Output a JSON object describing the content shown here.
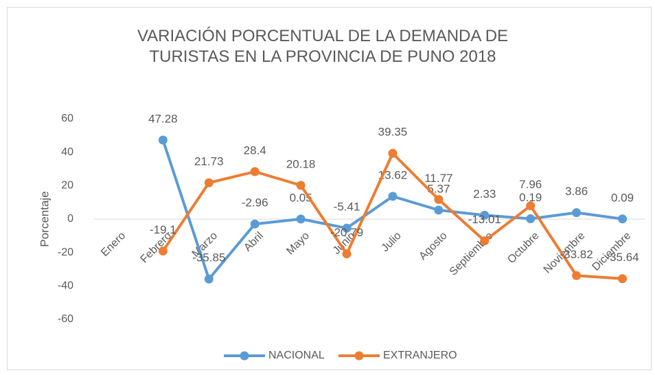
{
  "chart_data": {
    "type": "line",
    "title": "VARIACIÓN PORCENTUAL DE LA DEMANDA DE TURISTAS EN LA PROVINCIA DE PUNO 2018",
    "y_label": "Porcentaje",
    "categories": [
      "Enero",
      "Febrero",
      "Marzo",
      "Abril",
      "Mayo",
      "Junio",
      "Julio",
      "Agosto",
      "Septiembre",
      "Octubre",
      "Noviembre",
      "Diciembre"
    ],
    "series": [
      {
        "name": "NACIONAL",
        "color": "#5b9bd5",
        "values": [
          null,
          47.28,
          -35.85,
          -2.96,
          0.05,
          -5.41,
          13.62,
          5.37,
          2.33,
          0.19,
          3.86,
          0.09
        ]
      },
      {
        "name": "EXTRANJERO",
        "color": "#ed7d31",
        "values": [
          null,
          -19.1,
          21.73,
          28.4,
          20.18,
          -20.79,
          39.35,
          11.77,
          -13.01,
          7.96,
          -33.82,
          -35.64
        ]
      }
    ],
    "ylim": [
      -60,
      60
    ],
    "yticks": [
      -60,
      -40,
      -20,
      0,
      20,
      40,
      60
    ],
    "grid": false,
    "legend": "bottom"
  }
}
